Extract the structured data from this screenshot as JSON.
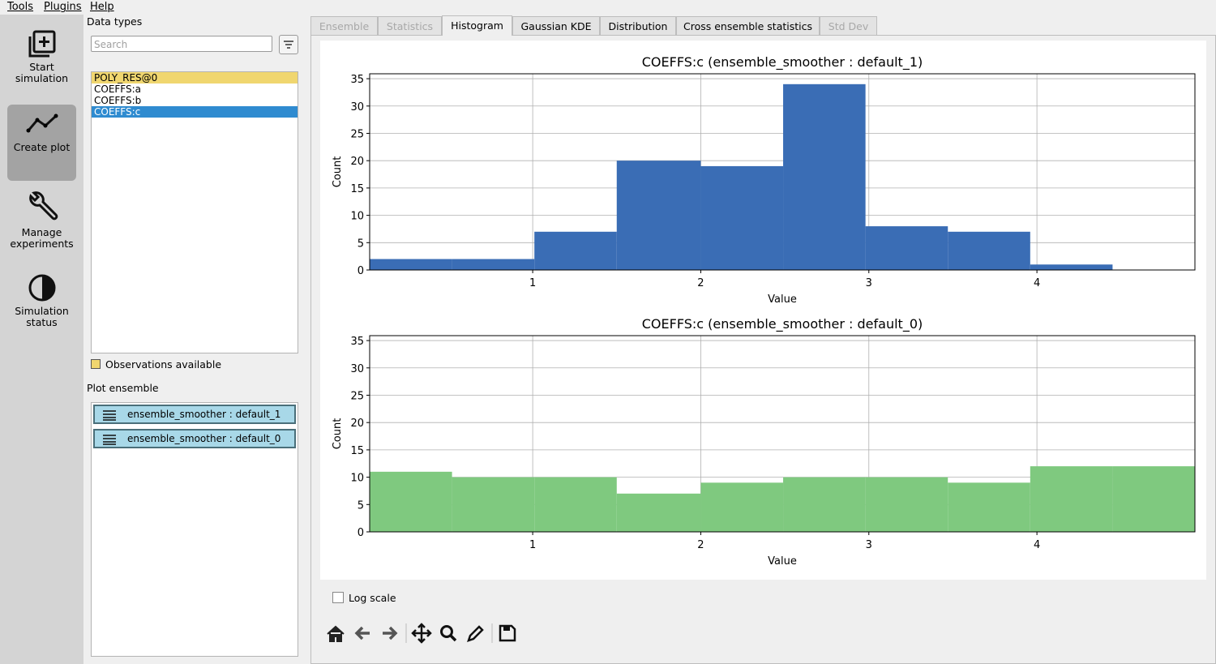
{
  "menu": [
    "Tools",
    "Plugins",
    "Help"
  ],
  "sidebar": [
    "Start simulation",
    "Create plot",
    "Manage experiments",
    "Simulation status"
  ],
  "data_types": {
    "title": "Data types",
    "search": "Search",
    "items": [
      "POLY_RES@0",
      "COEFFS:a",
      "COEFFS:b",
      "COEFFS:c"
    ],
    "observations": "Observations available"
  },
  "plot_ensemble": {
    "title": "Plot ensemble",
    "items": [
      "ensemble_smoother : default_1",
      "ensemble_smoother : default_0"
    ]
  },
  "tabs": [
    "Ensemble",
    "Statistics",
    "Histogram",
    "Gaussian KDE",
    "Distribution",
    "Cross ensemble statistics",
    "Std Dev"
  ],
  "chart_data": [
    {
      "type": "histogram",
      "title": "COEFFS:c (ensemble_smoother : default_1)",
      "xlabel": "Value",
      "ylabel": "Count",
      "bins": [
        0.03,
        0.52,
        1.01,
        1.5,
        2.0,
        2.49,
        2.98,
        3.47,
        3.96,
        4.45,
        4.94
      ],
      "values": [
        2,
        2,
        7,
        20,
        19,
        34,
        8,
        7,
        1,
        0
      ],
      "color": "#3a6db5",
      "xlim": [
        0.03,
        4.94
      ],
      "ylim": [
        0,
        35.9
      ],
      "xticks": [
        1,
        2,
        3,
        4
      ],
      "yticks": [
        0,
        5,
        10,
        15,
        20,
        25,
        30,
        35
      ],
      "grid": true
    },
    {
      "type": "histogram",
      "title": "COEFFS:c (ensemble_smoother : default_0)",
      "xlabel": "Value",
      "ylabel": "Count",
      "bins": [
        0.03,
        0.52,
        1.01,
        1.5,
        2.0,
        2.49,
        2.98,
        3.47,
        3.96,
        4.45,
        4.94
      ],
      "values": [
        11,
        10,
        10,
        7,
        9,
        10,
        10,
        9,
        12,
        12
      ],
      "color": "#7fc97f",
      "xlim": [
        0.03,
        4.94
      ],
      "ylim": [
        0,
        35.9
      ],
      "xticks": [
        1,
        2,
        3,
        4
      ],
      "yticks": [
        0,
        5,
        10,
        15,
        20,
        25,
        30,
        35
      ],
      "grid": true
    }
  ],
  "log_scale": "Log scale"
}
